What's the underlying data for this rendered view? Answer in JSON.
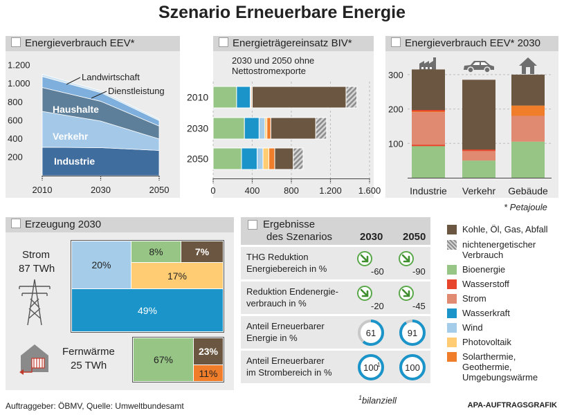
{
  "title": "Szenario Erneuerbare Energie",
  "footnote_petajoule": "* Petajoule",
  "footer": {
    "source": "Auftraggeber: ÖBMV, Quelle: Umweltbundesamt",
    "footnote_bilanziell": "bilanziell",
    "footnote_mark": "1",
    "credit": "APA-AUFTRAGSGRAFIK"
  },
  "colors": {
    "kohle": "#6b5741",
    "nichtenergetisch": "#a8a8a8",
    "bioenergie": "#97c585",
    "wasserstoff": "#e8462c",
    "strom": "#e08a72",
    "wasserkraft": "#1a94c9",
    "wind": "#a5cde9",
    "photovoltaik": "#ffcc73",
    "solarthermie": "#f07d2a",
    "industrie": "#3f6d9e",
    "verkehr": "#a3c8e8",
    "haushalte": "#5e7f99",
    "dienstleistung": "#7fb0dd",
    "landwirtschaft": "#cfe3f2"
  },
  "chart_data": [
    {
      "type": "area",
      "title": "Energieverbrauch EEV*",
      "x": [
        2010,
        2030,
        2050
      ],
      "ylim": [
        0,
        1250
      ],
      "yticks": [
        200,
        400,
        600,
        800,
        1000,
        1200
      ],
      "ytick_labels": [
        "200",
        "400",
        "600",
        "800",
        "1.000",
        "1.200"
      ],
      "stacked": true,
      "series": [
        {
          "name": "Industrie",
          "values": [
            310,
            305,
            275
          ]
        },
        {
          "name": "Verkehr",
          "values": [
            390,
            290,
            125
          ]
        },
        {
          "name": "Haushalte",
          "values": [
            260,
            215,
            140
          ]
        },
        {
          "name": "Dienstleistung",
          "values": [
            120,
            95,
            60
          ]
        },
        {
          "name": "Landwirtschaft",
          "values": [
            25,
            20,
            15
          ]
        }
      ]
    },
    {
      "type": "bar",
      "orientation": "horizontal",
      "stacked": true,
      "title": "Energieträgereinsatz BIV*",
      "subtitle": "2030 und 2050 ohne Nettostromexporte",
      "categories": [
        "2010",
        "2030",
        "2050"
      ],
      "xlim": [
        0,
        1600
      ],
      "xticks": [
        0,
        400,
        800,
        1200,
        1600
      ],
      "xtick_labels": [
        "0",
        "400",
        "800",
        "1.200",
        "1.600"
      ],
      "series": [
        {
          "name": "Bioenergie",
          "values": [
            240,
            320,
            290
          ]
        },
        {
          "name": "Wasserkraft",
          "values": [
            140,
            150,
            160
          ]
        },
        {
          "name": "Wind",
          "values": [
            10,
            60,
            60
          ]
        },
        {
          "name": "Photovoltaik",
          "values": [
            0,
            20,
            60
          ]
        },
        {
          "name": "Solarthermie, Geothermie, Umgebungswärme",
          "values": [
            10,
            40,
            60
          ]
        },
        {
          "name": "Kohle, Öl, Gas, Abfall",
          "values": [
            960,
            460,
            190
          ]
        },
        {
          "name": "nichtenergetischer Verbrauch",
          "values": [
            110,
            110,
            100
          ]
        }
      ]
    },
    {
      "type": "bar",
      "stacked": true,
      "title": "Energieverbrauch EEV* 2030",
      "categories": [
        "Industrie",
        "Verkehr",
        "Gebäude"
      ],
      "ylim": [
        0,
        340
      ],
      "yticks": [
        100,
        200,
        300
      ],
      "series": [
        {
          "name": "Bioenergie",
          "values": [
            93,
            50,
            105
          ]
        },
        {
          "name": "Wasserstoff",
          "values": [
            0,
            0,
            0
          ]
        },
        {
          "name": "Strom",
          "values": [
            98,
            30,
            75
          ]
        },
        {
          "name": "Solarthermie, Geothermie, Umgebungswärme",
          "values": [
            3,
            0,
            30
          ]
        },
        {
          "name": "Kohle, Öl, Gas, Abfall",
          "values": [
            121,
            205,
            90
          ]
        }
      ]
    }
  ],
  "panels": {
    "eev": {
      "title": "Energieverbrauch EEV*",
      "labels": {
        "landwirtschaft": "Landwirtschaft",
        "dienstleistung": "Dienstleistung",
        "haushalte": "Haushalte",
        "verkehr": "Verkehr",
        "industrie": "Industrie"
      }
    },
    "biv": {
      "title": "Energieträgereinsatz BIV*",
      "subtitle_line1": "2030 und 2050 ohne",
      "subtitle_line2": "Nettostromexporte"
    },
    "eev2030": {
      "title": "Energieverbrauch EEV* 2030",
      "icon_industrie": "factory-icon",
      "icon_verkehr": "car-icon",
      "icon_gebaeude": "house-icon"
    },
    "erzeugung": {
      "title": "Erzeugung 2030",
      "strom_label": "Strom",
      "strom_value": "87 TWh",
      "strom_tiles": {
        "wind": "20%",
        "bio": "8%",
        "kohle": "7%",
        "pv": "17%",
        "wasser": "49%"
      },
      "fw_label": "Fernwärme",
      "fw_value": "25 TWh",
      "fw_tiles": {
        "bio": "67%",
        "kohle": "23%",
        "solar": "11%"
      },
      "icon_tower": "power-tower-icon",
      "icon_house": "heated-house-icon"
    },
    "ergebnisse": {
      "title_line1": "Ergebnisse",
      "title_line2": "des Szenarios",
      "col_2030": "2030",
      "col_2050": "2050",
      "rows": [
        {
          "label1": "THG Reduktion",
          "label2": "Energiebereich in %",
          "v2030": "-60",
          "v2050": "-90"
        },
        {
          "label1": "Reduktion Endenergie-",
          "label2": "verbrauch in %",
          "v2030": "-20",
          "v2050": "-45"
        },
        {
          "label1": "Anteil Erneuerbarer",
          "label2": "Energie in %",
          "v2030": "61",
          "v2050": "91",
          "p2030": 61,
          "p2050": 91
        },
        {
          "label1": "Anteil Erneuerbarer",
          "label2": "im Strombereich in %",
          "v2030": "100",
          "v2050": "100",
          "v2030_mark": "1",
          "p2030": 100,
          "p2050": 100
        }
      ]
    }
  },
  "legend": [
    {
      "key": "kohle",
      "label": "Kohle, Öl, Gas, Abfall"
    },
    {
      "key": "nichtenergetisch",
      "label": "nichtenergetischer Verbrauch",
      "label1": "nichtenergetischer",
      "label2": "Verbrauch"
    },
    {
      "key": "bioenergie",
      "label": "Bioenergie"
    },
    {
      "key": "wasserstoff",
      "label": "Wasserstoff"
    },
    {
      "key": "strom",
      "label": "Strom"
    },
    {
      "key": "wasserkraft",
      "label": "Wasserkraft"
    },
    {
      "key": "wind",
      "label": "Wind"
    },
    {
      "key": "photovoltaik",
      "label": "Photovoltaik"
    },
    {
      "key": "solarthermie",
      "label": "Solarthermie, Geothermie, Umgebungswärme",
      "label1": "Solarthermie,",
      "label2": "Geothermie,",
      "label3": "Umgebungswärme"
    }
  ]
}
